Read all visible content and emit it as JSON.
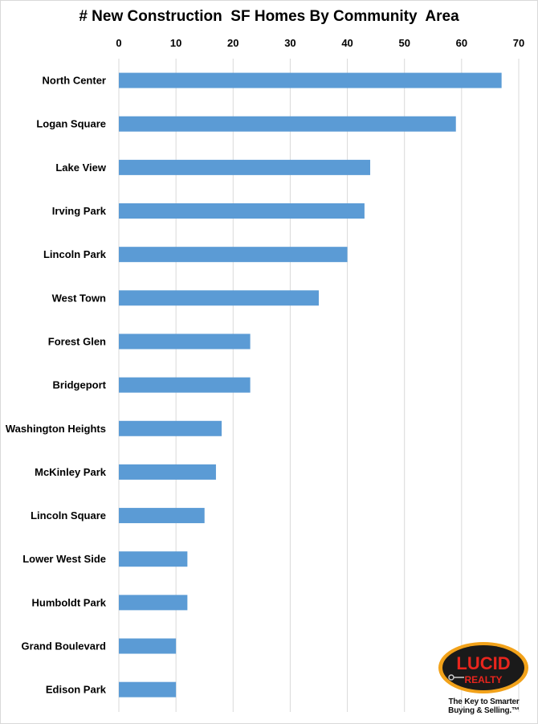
{
  "chart_data": {
    "type": "bar",
    "orientation": "horizontal",
    "title": "# New Construction  SF Homes By Community  Area",
    "xlabel": "",
    "ylabel": "",
    "xlim": [
      0,
      70
    ],
    "x_ticks": [
      0,
      10,
      20,
      30,
      40,
      50,
      60,
      70
    ],
    "x_axis_position": "top",
    "grid": true,
    "categories": [
      "North Center",
      "Logan Square",
      "Lake View",
      "Irving Park",
      "Lincoln Park",
      "West Town",
      "Forest Glen",
      "Bridgeport",
      "Washington Heights",
      "McKinley Park",
      "Lincoln Square",
      "Lower West Side",
      "Humboldt Park",
      "Grand Boulevard",
      "Edison Park"
    ],
    "values": [
      67,
      59,
      44,
      43,
      40,
      35,
      23,
      23,
      18,
      17,
      15,
      12,
      12,
      10,
      10
    ],
    "bar_color": "#5b9bd5",
    "grid_color": "#d9d9d9"
  },
  "logo": {
    "brand_top": "LUCID",
    "brand_bottom": "REALTY",
    "tagline_line1": "The Key to Smarter",
    "tagline_line2": "Buying & Selling.™",
    "colors": {
      "ring": "#f2a21a",
      "inner": "#1a1a1a",
      "text": "#e8251d"
    }
  }
}
